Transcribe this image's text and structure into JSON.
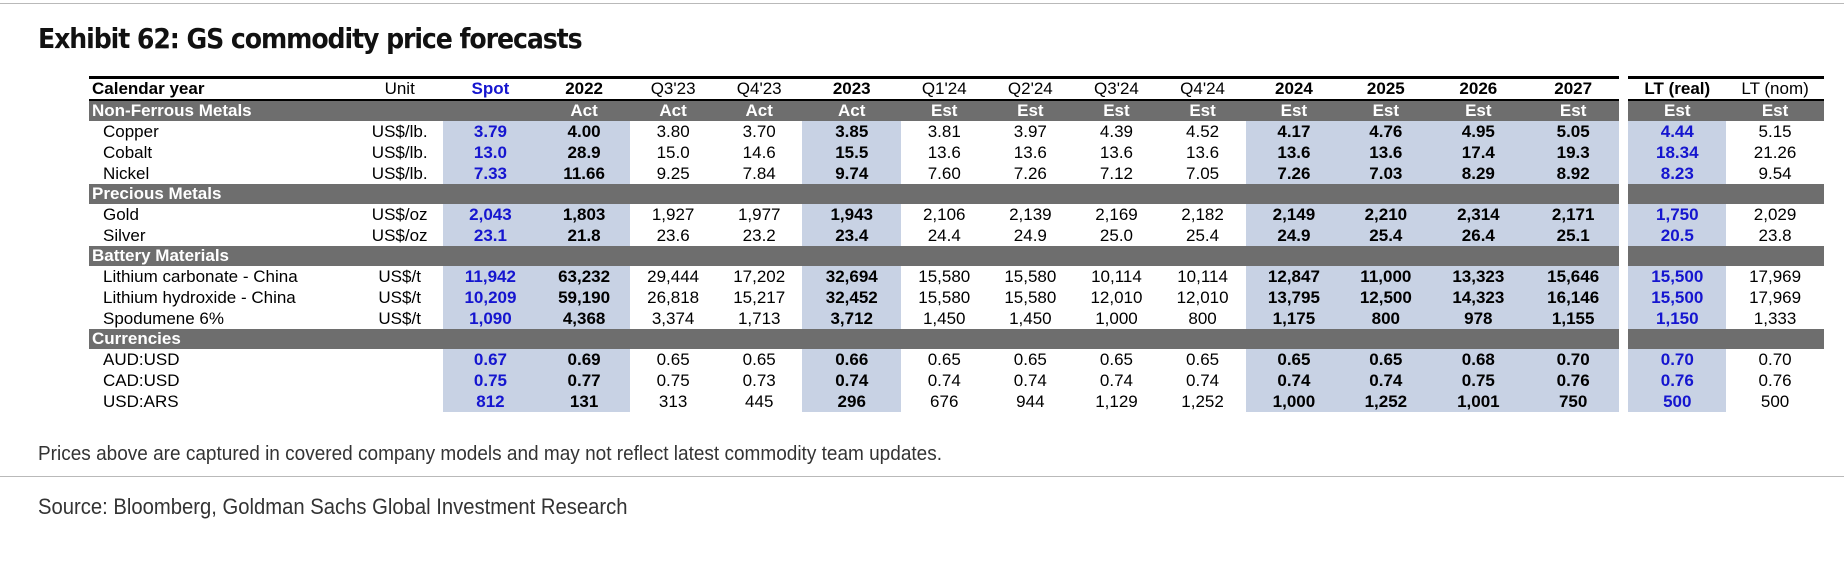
{
  "title": "Exhibit 62: GS commodity price forecasts",
  "header": {
    "label": "Calendar year",
    "unit": "Unit",
    "columns": [
      "Spot",
      "2022",
      "Q3'23",
      "Q4'23",
      "2023",
      "Q1'24",
      "Q2'24",
      "Q3'24",
      "Q4'24",
      "2024",
      "2025",
      "2026",
      "2027"
    ],
    "lt_columns": [
      "LT (real)",
      "LT (nom)"
    ]
  },
  "sections": [
    {
      "name": "Non-Ferrous Metals",
      "tags": [
        "",
        "Act",
        "Act",
        "Act",
        "Act",
        "Est",
        "Est",
        "Est",
        "Est",
        "Est",
        "Est",
        "Est",
        "Est"
      ],
      "lt_tags": [
        "Est",
        "Est"
      ],
      "rows": [
        {
          "label": "Copper",
          "unit": "US$/lb.",
          "values": [
            "3.79",
            "4.00",
            "3.80",
            "3.70",
            "3.85",
            "3.81",
            "3.97",
            "4.39",
            "4.52",
            "4.17",
            "4.76",
            "4.95",
            "5.05"
          ],
          "lt": [
            "4.44",
            "5.15"
          ]
        },
        {
          "label": "Cobalt",
          "unit": "US$/lb.",
          "values": [
            "13.0",
            "28.9",
            "15.0",
            "14.6",
            "15.5",
            "13.6",
            "13.6",
            "13.6",
            "13.6",
            "13.6",
            "13.6",
            "17.4",
            "19.3"
          ],
          "lt": [
            "18.34",
            "21.26"
          ]
        },
        {
          "label": "Nickel",
          "unit": "US$/lb.",
          "values": [
            "7.33",
            "11.66",
            "9.25",
            "7.84",
            "9.74",
            "7.60",
            "7.26",
            "7.12",
            "7.05",
            "7.26",
            "7.03",
            "8.29",
            "8.92"
          ],
          "lt": [
            "8.23",
            "9.54"
          ]
        }
      ]
    },
    {
      "name": "Precious Metals",
      "tags": [
        "",
        "",
        "",
        "",
        "",
        "",
        "",
        "",
        "",
        "",
        "",
        "",
        ""
      ],
      "lt_tags": [
        "",
        ""
      ],
      "rows": [
        {
          "label": "Gold",
          "unit": "US$/oz",
          "values": [
            "2,043",
            "1,803",
            "1,927",
            "1,977",
            "1,943",
            "2,106",
            "2,139",
            "2,169",
            "2,182",
            "2,149",
            "2,210",
            "2,314",
            "2,171"
          ],
          "lt": [
            "1,750",
            "2,029"
          ]
        },
        {
          "label": "Silver",
          "unit": "US$/oz",
          "values": [
            "23.1",
            "21.8",
            "23.6",
            "23.2",
            "23.4",
            "24.4",
            "24.9",
            "25.0",
            "25.4",
            "24.9",
            "25.4",
            "26.4",
            "25.1"
          ],
          "lt": [
            "20.5",
            "23.8"
          ]
        }
      ]
    },
    {
      "name": "Battery Materials",
      "tags": [
        "",
        "",
        "",
        "",
        "",
        "",
        "",
        "",
        "",
        "",
        "",
        "",
        ""
      ],
      "lt_tags": [
        "",
        ""
      ],
      "rows": [
        {
          "label": "Lithium carbonate - China",
          "unit": "US$/t",
          "values": [
            "11,942",
            "63,232",
            "29,444",
            "17,202",
            "32,694",
            "15,580",
            "15,580",
            "10,114",
            "10,114",
            "12,847",
            "11,000",
            "13,323",
            "15,646"
          ],
          "lt": [
            "15,500",
            "17,969"
          ]
        },
        {
          "label": "Lithium hydroxide - China",
          "unit": "US$/t",
          "values": [
            "10,209",
            "59,190",
            "26,818",
            "15,217",
            "32,452",
            "15,580",
            "15,580",
            "12,010",
            "12,010",
            "13,795",
            "12,500",
            "14,323",
            "16,146"
          ],
          "lt": [
            "15,500",
            "17,969"
          ]
        },
        {
          "label": "Spodumene 6%",
          "unit": "US$/t",
          "values": [
            "1,090",
            "4,368",
            "3,374",
            "1,713",
            "3,712",
            "1,450",
            "1,450",
            "1,000",
            "800",
            "1,175",
            "800",
            "978",
            "1,155"
          ],
          "lt": [
            "1,150",
            "1,333"
          ]
        }
      ]
    },
    {
      "name": "Currencies",
      "tags": [
        "",
        "",
        "",
        "",
        "",
        "",
        "",
        "",
        "",
        "",
        "",
        "",
        ""
      ],
      "lt_tags": [
        "",
        ""
      ],
      "rows": [
        {
          "label": "AUD:USD",
          "unit": "",
          "values": [
            "0.67",
            "0.69",
            "0.65",
            "0.65",
            "0.66",
            "0.65",
            "0.65",
            "0.65",
            "0.65",
            "0.65",
            "0.65",
            "0.68",
            "0.70"
          ],
          "lt": [
            "0.70",
            "0.70"
          ]
        },
        {
          "label": "CAD:USD",
          "unit": "",
          "values": [
            "0.75",
            "0.77",
            "0.75",
            "0.73",
            "0.74",
            "0.74",
            "0.74",
            "0.74",
            "0.74",
            "0.74",
            "0.74",
            "0.75",
            "0.76"
          ],
          "lt": [
            "0.76",
            "0.76"
          ]
        },
        {
          "label": "USD:ARS",
          "unit": "",
          "values": [
            "812",
            "131",
            "313",
            "445",
            "296",
            "676",
            "944",
            "1,129",
            "1,252",
            "1,000",
            "1,252",
            "1,001",
            "750"
          ],
          "lt": [
            "500",
            "500"
          ]
        }
      ]
    }
  ],
  "note": "Prices above are captured in covered company models and may not reflect latest commodity team updates.",
  "source": "Source: Bloomberg, Goldman Sachs Global Investment Research",
  "colors": {
    "shade": "#c8d2e4",
    "spot_blue": "#1515cf",
    "section_gray": "#6e6e6e"
  }
}
